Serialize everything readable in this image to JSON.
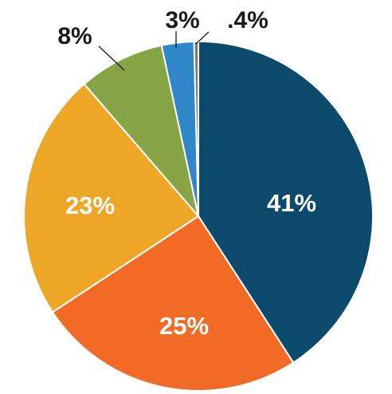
{
  "chart_data": {
    "type": "pie",
    "start_angle_deg": 0,
    "direction": "clockwise",
    "slices": [
      {
        "label": "41%",
        "value": 41,
        "color": "#0b4a6a",
        "label_position": "inside"
      },
      {
        "label": "25%",
        "value": 25,
        "color": "#f26b26",
        "label_position": "inside"
      },
      {
        "label": "23%",
        "value": 23,
        "color": "#eea626",
        "label_position": "inside"
      },
      {
        "label": "8%",
        "value": 8,
        "color": "#87a544",
        "label_position": "outside"
      },
      {
        "label": "3%",
        "value": 3,
        "color": "#2f86c8",
        "label_position": "outside"
      },
      {
        "label": ".4%",
        "value": 0.4,
        "color": "#6e7b83",
        "label_position": "outside"
      }
    ],
    "title": "",
    "legend": "none"
  }
}
